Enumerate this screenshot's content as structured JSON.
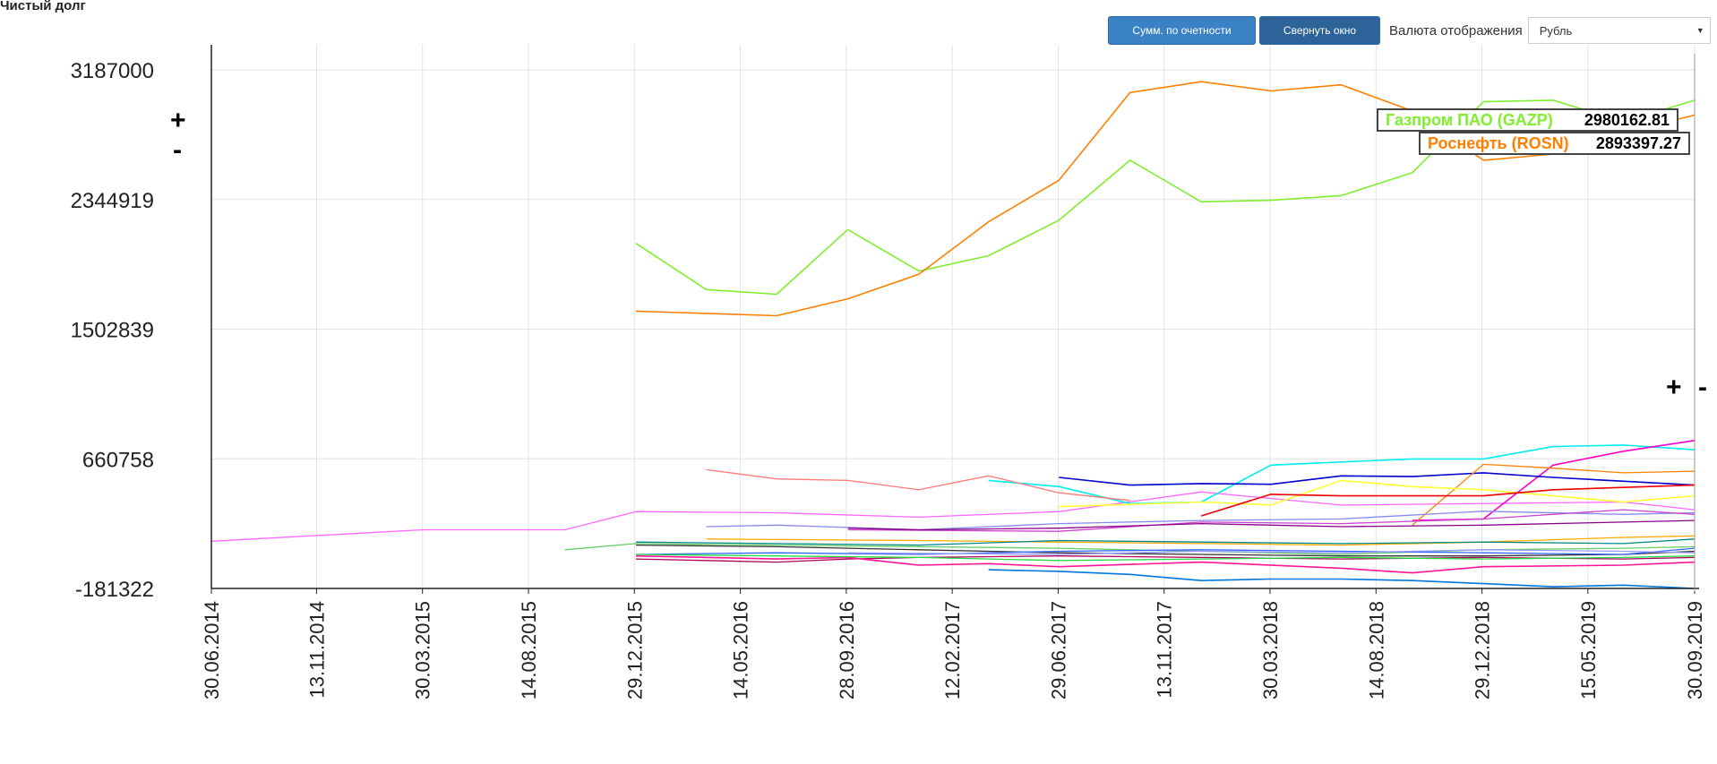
{
  "header": {
    "title": "Чистый долг"
  },
  "toolbar": {
    "sum_label": "Сумм. по очетности",
    "collapse_label": "Свернуть окно",
    "currency_label": "Валюта отображения",
    "currency_value": "Рубль"
  },
  "zoom": {
    "plus": "+",
    "minus": "-"
  },
  "colors": {
    "gazprom": "#7fef2d",
    "rosneft": "#ff8000",
    "grid": "#e3e3e3",
    "axis": "#222222"
  },
  "tooltips": [
    {
      "name": "Газпром ПАО (GAZP)",
      "value": "2980162.81",
      "color": "#7fef2d"
    },
    {
      "name": "Роснефть (ROSN)",
      "value": "2893397.27",
      "color": "#ff8000"
    }
  ],
  "chart_data": {
    "type": "line",
    "title": "Чистый долг",
    "x": [
      "30.06.2014",
      "13.11.2014",
      "30.03.2015",
      "14.08.2015",
      "29.12.2015",
      "14.05.2016",
      "28.09.2016",
      "12.02.2017",
      "29.06.2017",
      "13.11.2017",
      "30.03.2018",
      "14.08.2018",
      "29.12.2018",
      "15.05.2019",
      "30.09.2019"
    ],
    "x_range": [
      "30.06.2014",
      "30.09.2019"
    ],
    "y_ticks": [
      3187000,
      2344919,
      1502839,
      660758,
      -181322
    ],
    "ylim": [
      -181322,
      3187000
    ],
    "grid": true,
    "series": [
      {
        "name": "Газпром ПАО (GAZP)",
        "color": "#7fef2d",
        "width": 1.6,
        "points": [
          [
            "31.12.2015",
            2060000
          ],
          [
            "31.03.2016",
            1760000
          ],
          [
            "30.06.2016",
            1730000
          ],
          [
            "30.09.2016",
            2150000
          ],
          [
            "31.12.2016",
            1880000
          ],
          [
            "31.03.2017",
            1980000
          ],
          [
            "30.06.2017",
            2210000
          ],
          [
            "30.09.2017",
            2600000
          ],
          [
            "31.12.2017",
            2330000
          ],
          [
            "31.03.2018",
            2340000
          ],
          [
            "30.06.2018",
            2370000
          ],
          [
            "30.09.2018",
            2520000
          ],
          [
            "31.12.2018",
            2980000
          ],
          [
            "31.03.2019",
            2990000
          ],
          [
            "30.06.2019",
            2850000
          ],
          [
            "30.09.2019",
            2990000
          ]
        ]
      },
      {
        "name": "Роснефть (ROSN)",
        "color": "#ff8000",
        "width": 1.6,
        "points": [
          [
            "31.12.2015",
            1620000
          ],
          [
            "30.06.2016",
            1590000
          ],
          [
            "30.09.2016",
            1700000
          ],
          [
            "31.12.2016",
            1860000
          ],
          [
            "31.03.2017",
            2200000
          ],
          [
            "30.06.2017",
            2470000
          ],
          [
            "30.09.2017",
            3040000
          ],
          [
            "31.12.2017",
            3110000
          ],
          [
            "31.03.2018",
            3050000
          ],
          [
            "30.06.2018",
            3090000
          ],
          [
            "30.09.2018",
            2920000
          ],
          [
            "31.12.2018",
            2600000
          ],
          [
            "31.03.2019",
            2640000
          ],
          [
            "30.06.2019",
            2780000
          ],
          [
            "30.09.2019",
            2893397
          ]
        ]
      },
      {
        "color": "#ff66ff",
        "width": 1.3,
        "points": [
          [
            "30.06.2014",
            125000
          ],
          [
            "31.12.2014",
            175000
          ],
          [
            "31.03.2015",
            200000
          ],
          [
            "30.06.2015",
            200000
          ],
          [
            "30.09.2015",
            200000
          ],
          [
            "31.12.2015",
            318000
          ],
          [
            "30.06.2016",
            310000
          ],
          [
            "31.12.2016",
            282000
          ],
          [
            "30.06.2017",
            318000
          ],
          [
            "31.12.2017",
            445000
          ],
          [
            "30.06.2018",
            360000
          ],
          [
            "31.12018",
            470000
          ],
          [
            "30.06.2019",
            380000
          ],
          [
            "30.09.2019",
            330000
          ]
        ]
      },
      {
        "color": "#00eeee",
        "width": 1.6,
        "points": [
          [
            "31.03.2017",
            520000
          ],
          [
            "30.06.2017",
            480000
          ],
          [
            "30.09.2017",
            370000
          ],
          [
            "31.12.2017",
            380000
          ],
          [
            "31.03.2018",
            620000
          ],
          [
            "30.06.2018",
            640000
          ],
          [
            "30.09.2018",
            660000
          ],
          [
            "31.12.2018",
            660000
          ],
          [
            "31.03.2019",
            740000
          ],
          [
            "30.06.2019",
            750000
          ],
          [
            "30.09.2019",
            720000
          ]
        ]
      },
      {
        "color": "#ff00cc",
        "width": 1.6,
        "points": [
          [
            "30.09.2018",
            260000
          ],
          [
            "31.12.2018",
            270000
          ],
          [
            "31.03.2019",
            620000
          ],
          [
            "30.06.2019",
            710000
          ],
          [
            "30.09.2019",
            780000
          ]
        ]
      },
      {
        "color": "#ff7777",
        "width": 1.3,
        "points": [
          [
            "31.03.2016",
            590000
          ],
          [
            "30.06.2016",
            530000
          ],
          [
            "30.09.2016",
            520000
          ],
          [
            "31.12.2016",
            460000
          ],
          [
            "31.03.2017",
            550000
          ],
          [
            "30.06.2017",
            440000
          ],
          [
            "30.09.2017",
            390000
          ]
        ]
      },
      {
        "color": "#0000cc",
        "width": 1.6,
        "points": [
          [
            "30.06.2017",
            540000
          ],
          [
            "30.09.2017",
            490000
          ],
          [
            "31.12.2017",
            500000
          ],
          [
            "31.03.2018",
            495000
          ],
          [
            "30.06.2018",
            550000
          ],
          [
            "30.09.2018",
            545000
          ],
          [
            "31.12.2018",
            570000
          ],
          [
            "31.03.2019",
            540000
          ],
          [
            "30.09.2019",
            490000
          ]
        ]
      },
      {
        "color": "#ff8000",
        "width": 1.3,
        "points": [
          [
            "30.09.2018",
            230000
          ],
          [
            "31.12.2018",
            625000
          ],
          [
            "31.03.2019",
            600000
          ],
          [
            "30.06.2019",
            570000
          ],
          [
            "30.09.2019",
            580000
          ]
        ]
      },
      {
        "color": "#ffff33",
        "width": 1.6,
        "points": [
          [
            "30.06.2017",
            350000
          ],
          [
            "31.12.2017",
            380000
          ],
          [
            "31.03.2018",
            360000
          ],
          [
            "30.06.2018",
            520000
          ],
          [
            "30.09.2018",
            480000
          ],
          [
            "31.12.2018",
            460000
          ],
          [
            "31.03.2019",
            420000
          ],
          [
            "30.06.2019",
            380000
          ],
          [
            "30.09.2019",
            420000
          ]
        ]
      },
      {
        "color": "#ee0000",
        "width": 1.6,
        "points": [
          [
            "31.12.2017",
            290000
          ],
          [
            "31.03.2018",
            430000
          ],
          [
            "30.06.2018",
            420000
          ],
          [
            "31.12.2018",
            420000
          ],
          [
            "31.03.2019",
            460000
          ],
          [
            "30.09.2019",
            490000
          ]
        ]
      },
      {
        "color": "#8888ee",
        "width": 1.3,
        "points": [
          [
            "31.03.2016",
            220000
          ],
          [
            "30.06.2016",
            230000
          ],
          [
            "31.12.2016",
            200000
          ],
          [
            "30.06.2017",
            240000
          ],
          [
            "31.12.2017",
            260000
          ],
          [
            "30.06.2018",
            270000
          ],
          [
            "31.12.2018",
            320000
          ],
          [
            "30.06.2019",
            300000
          ],
          [
            "30.09.2019",
            310000
          ]
        ]
      },
      {
        "color": "#cc44cc",
        "width": 1.3,
        "points": [
          [
            "30.09.2016",
            200000
          ],
          [
            "30.06.2017",
            190000
          ],
          [
            "31.12.2017",
            250000
          ],
          [
            "30.06.2018",
            240000
          ],
          [
            "31.12.2018",
            270000
          ],
          [
            "30.06.2019",
            330000
          ],
          [
            "30.09.2019",
            300000
          ]
        ]
      },
      {
        "color": "#880088",
        "width": 1.3,
        "points": [
          [
            "30.09.2016",
            210000
          ],
          [
            "31.12.2016",
            200000
          ],
          [
            "30.06.2017",
            210000
          ],
          [
            "31.12.2017",
            240000
          ],
          [
            "30.06.2018",
            220000
          ],
          [
            "31.12.2018",
            230000
          ],
          [
            "30.06.2019",
            250000
          ],
          [
            "30.09.2019",
            260000
          ]
        ]
      },
      {
        "color": "#ffaa00",
        "width": 1.3,
        "points": [
          [
            "31.03.2016",
            140000
          ],
          [
            "31.12.2016",
            130000
          ],
          [
            "30.06.2017",
            120000
          ],
          [
            "31.12.2017",
            110000
          ],
          [
            "30.06.2018",
            100000
          ],
          [
            "31.12.2018",
            120000
          ],
          [
            "30.06.2019",
            150000
          ],
          [
            "30.09.2019",
            160000
          ]
        ]
      },
      {
        "color": "#008888",
        "width": 1.3,
        "points": [
          [
            "31.12.2015",
            120000
          ],
          [
            "30.06.2016",
            110000
          ],
          [
            "31.12.2016",
            100000
          ],
          [
            "30.06.2017",
            130000
          ],
          [
            "31.12.2017",
            120000
          ],
          [
            "30.06.2018",
            110000
          ],
          [
            "31.12.2018",
            120000
          ],
          [
            "30.06.2019",
            110000
          ],
          [
            "30.09.2019",
            140000
          ]
        ]
      },
      {
        "color": "#66cc66",
        "width": 1.3,
        "points": [
          [
            "30.09.2015",
            70000
          ],
          [
            "31.12.2015",
            110000
          ],
          [
            "30.06.2016",
            100000
          ],
          [
            "31.12.2016",
            90000
          ],
          [
            "30.06.2017",
            80000
          ],
          [
            "31.12.2017",
            60000
          ],
          [
            "30.06.2018",
            40000
          ],
          [
            "31.12.2018",
            70000
          ],
          [
            "30.06.2019",
            80000
          ],
          [
            "30.09.2019",
            90000
          ]
        ]
      },
      {
        "color": "#333333",
        "width": 1.3,
        "points": [
          [
            "31.12.2015",
            100000
          ],
          [
            "30.06.2016",
            90000
          ],
          [
            "31.12.2016",
            70000
          ],
          [
            "30.06.2017",
            50000
          ],
          [
            "31.12.2017",
            40000
          ],
          [
            "30.06.2018",
            30000
          ],
          [
            "31.12.2018",
            30000
          ],
          [
            "30.06.2019",
            40000
          ],
          [
            "30.09.2019",
            60000
          ]
        ]
      },
      {
        "color": "#3366ff",
        "width": 1.3,
        "points": [
          [
            "31.12.2015",
            40000
          ],
          [
            "30.06.2016",
            50000
          ],
          [
            "31.12.2016",
            40000
          ],
          [
            "30.06.2017",
            60000
          ],
          [
            "31.12.2017",
            70000
          ],
          [
            "30.06.2018",
            60000
          ],
          [
            "31.12.2018",
            50000
          ],
          [
            "30.06.2019",
            40000
          ],
          [
            "30.09.2019",
            80000
          ]
        ]
      },
      {
        "color": "#aa0055",
        "width": 1.3,
        "points": [
          [
            "31.12.2015",
            10000
          ],
          [
            "31.03.2016",
            0
          ],
          [
            "30.06.2016",
            -10000
          ],
          [
            "30.09.2016",
            10000
          ],
          [
            "31.12.2016",
            20000
          ],
          [
            "30.06.2017",
            30000
          ],
          [
            "31.12.2017",
            20000
          ],
          [
            "30.06.2018",
            10000
          ],
          [
            "31.12.2018",
            20000
          ],
          [
            "30.06.2019",
            10000
          ],
          [
            "30.09.2019",
            20000
          ]
        ]
      },
      {
        "color": "#ff1493",
        "width": 1.6,
        "points": [
          [
            "31.12.2015",
            30000
          ],
          [
            "30.06.2016",
            10000
          ],
          [
            "30.09.2016",
            20000
          ],
          [
            "31.12.2016",
            -30000
          ],
          [
            "31.03.2017",
            -20000
          ],
          [
            "30.06.2017",
            -40000
          ],
          [
            "31.12.2017",
            -10000
          ],
          [
            "30.06.2018",
            -50000
          ],
          [
            "30.09.2018",
            -80000
          ],
          [
            "31.12.2018",
            -40000
          ],
          [
            "30.06.2019",
            -30000
          ],
          [
            "30.09.2019",
            -10000
          ]
        ]
      },
      {
        "color": "#22dd44",
        "width": 1.3,
        "points": [
          [
            "31.12.2015",
            40000
          ],
          [
            "30.06.2016",
            30000
          ],
          [
            "31.12.2016",
            20000
          ],
          [
            "30.06.2017",
            0
          ],
          [
            "31.12.2017",
            10000
          ],
          [
            "30.06.2018",
            20000
          ],
          [
            "31.12.2018",
            10000
          ],
          [
            "30.06.2019",
            20000
          ],
          [
            "30.09.2019",
            30000
          ]
        ]
      },
      {
        "color": "#9999ff",
        "width": 1.3,
        "points": [
          [
            "30.09.2016",
            50000
          ],
          [
            "30.06.2017",
            40000
          ],
          [
            "31.12.2017",
            60000
          ],
          [
            "30.06.2018",
            50000
          ],
          [
            "31.12.2018",
            70000
          ],
          [
            "30.06.2019",
            60000
          ],
          [
            "30.09.2019",
            50000
          ]
        ]
      },
      {
        "color": "#0077dd",
        "width": 1.6,
        "points": [
          [
            "31.03.2017",
            -60000
          ],
          [
            "30.06.2017",
            -70000
          ],
          [
            "30.09.2017",
            -90000
          ],
          [
            "31.12.2017",
            -130000
          ],
          [
            "31.03.2018",
            -120000
          ],
          [
            "30.06.2018",
            -120000
          ],
          [
            "30.09.2018",
            -130000
          ],
          [
            "31.12.2018",
            -150000
          ],
          [
            "31.03.2019",
            -170000
          ],
          [
            "30.06.2019",
            -160000
          ],
          [
            "30.09.2019",
            -181322
          ]
        ]
      }
    ]
  }
}
